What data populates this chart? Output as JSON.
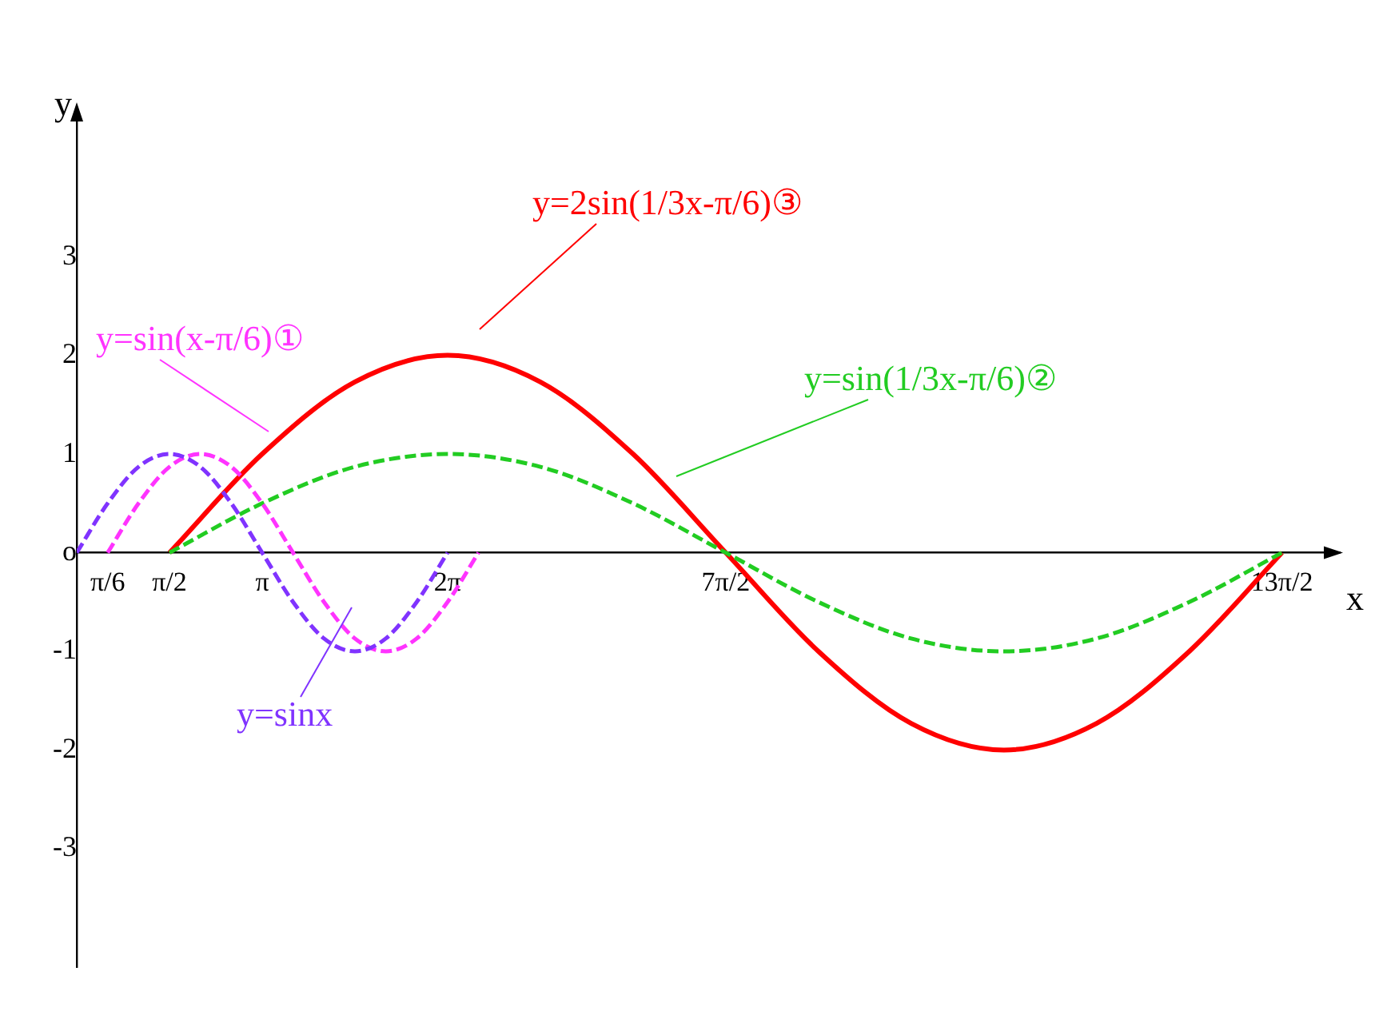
{
  "chart_data": {
    "type": "line",
    "xlabel": "x",
    "ylabel": "y",
    "xlim": [
      0,
      21.4
    ],
    "ylim": [
      -4.2,
      4.5
    ],
    "xticks": [
      {
        "value": 0.524,
        "label": "π/6"
      },
      {
        "value": 1.571,
        "label": "π/2"
      },
      {
        "value": 3.142,
        "label": "π"
      },
      {
        "value": 6.283,
        "label": "2π"
      },
      {
        "value": 10.996,
        "label": "7π/2"
      },
      {
        "value": 20.42,
        "label": "13π/2"
      }
    ],
    "yticks": [
      -3,
      -2,
      -1,
      {
        "value": 0,
        "label": "o"
      },
      1,
      2,
      3
    ],
    "grid": false,
    "legend": false,
    "marker": "none",
    "series": [
      {
        "name": "y=sinx",
        "color": "#8033ff",
        "line_style": "dashed",
        "x": [
          0,
          0.524,
          1.047,
          1.571,
          2.094,
          2.618,
          3.142,
          3.665,
          4.189,
          4.712,
          5.236,
          5.76,
          6.283
        ],
        "values": [
          0,
          0.5,
          0.87,
          1,
          0.87,
          0.5,
          0,
          -0.5,
          -0.87,
          -1,
          -0.87,
          -0.5,
          0
        ]
      },
      {
        "name": "y=sin(x-π/6)①",
        "color": "#ff33ff",
        "line_style": "dashed",
        "x": [
          0.524,
          1.047,
          1.571,
          2.094,
          2.618,
          3.142,
          3.665,
          4.189,
          4.712,
          5.236,
          5.76,
          6.283,
          6.807
        ],
        "values": [
          0,
          0.5,
          0.87,
          1,
          0.87,
          0.5,
          0,
          -0.5,
          -0.87,
          -1,
          -0.87,
          -0.5,
          0
        ]
      },
      {
        "name": "y=sin(1/3x-π/6)②",
        "color": "#22cc22",
        "line_style": "dashed",
        "x": [
          1.571,
          3.142,
          4.712,
          6.283,
          7.854,
          9.425,
          10.996,
          12.566,
          14.137,
          15.708,
          17.279,
          18.85,
          20.42
        ],
        "values": [
          0,
          0.5,
          0.87,
          1,
          0.87,
          0.5,
          0,
          -0.5,
          -0.87,
          -1,
          -0.87,
          -0.5,
          0
        ]
      },
      {
        "name": "y=2sin(1/3x-π/6)③",
        "color": "#ff0000",
        "line_style": "solid",
        "x": [
          1.571,
          3.142,
          4.712,
          6.283,
          7.854,
          9.425,
          10.996,
          12.566,
          14.137,
          15.708,
          17.279,
          18.85,
          20.42
        ],
        "values": [
          0,
          1,
          1.73,
          2,
          1.73,
          1,
          0,
          -1,
          -1.73,
          -2,
          -1.73,
          -1,
          0
        ]
      }
    ]
  }
}
